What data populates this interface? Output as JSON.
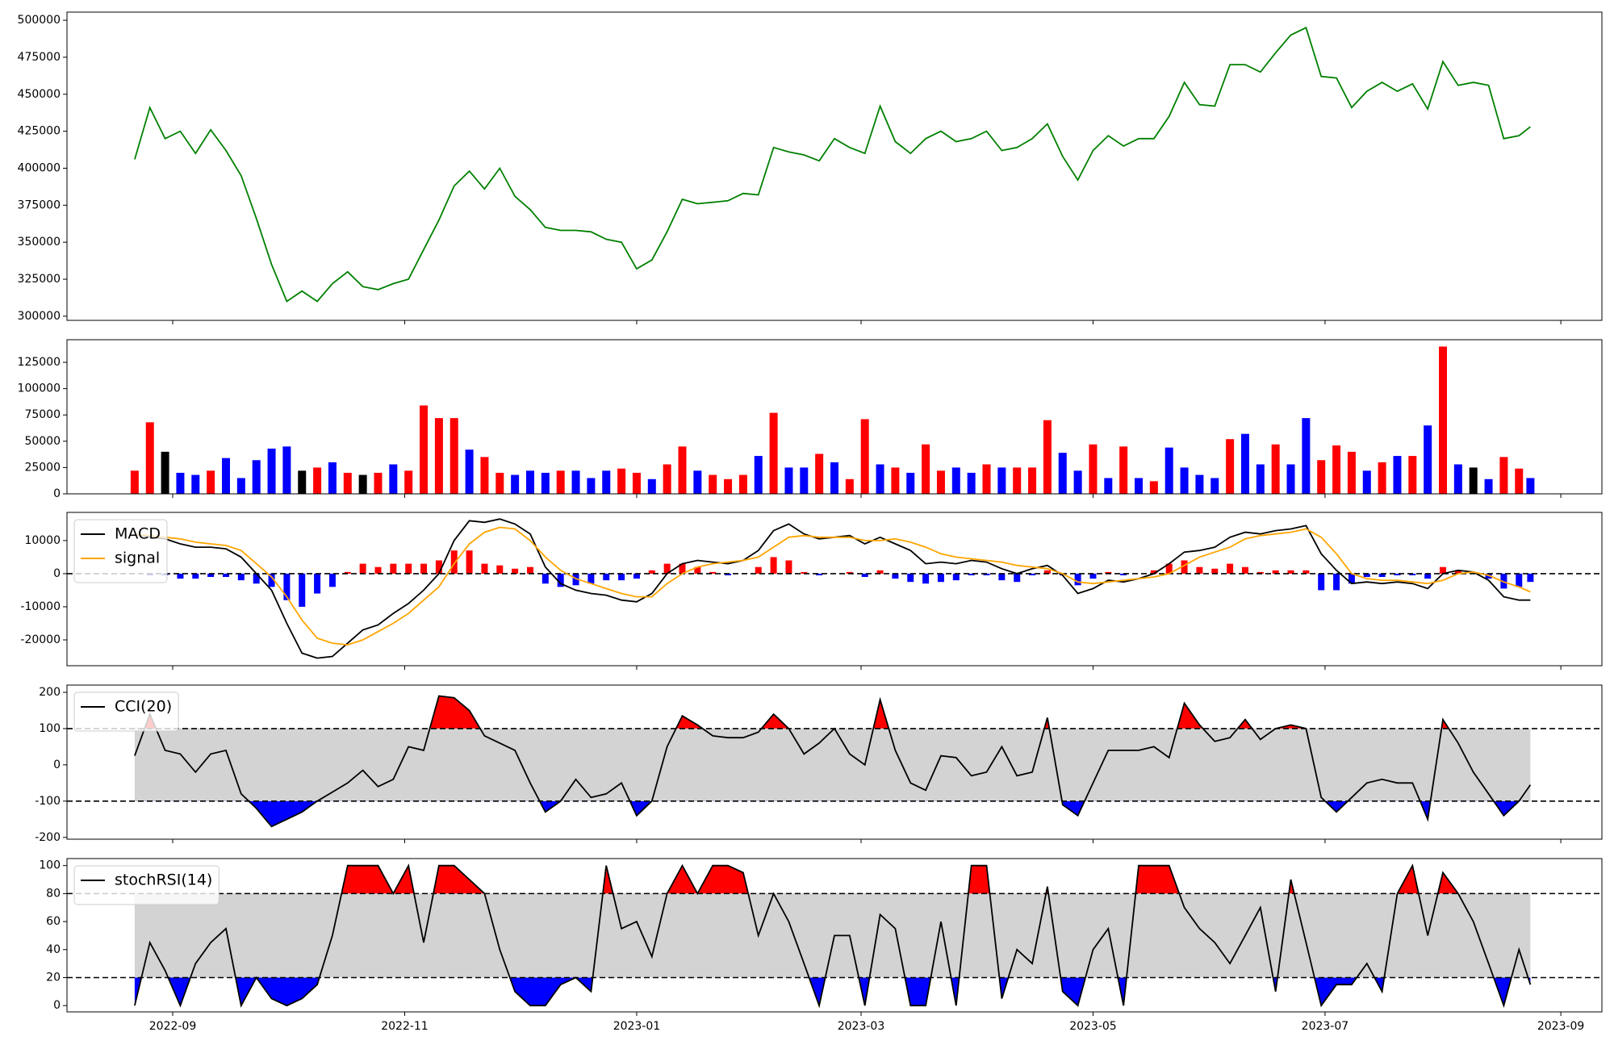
{
  "chart_data": [
    {
      "type": "line",
      "sharex": true,
      "ylim": [
        297200,
        505500
      ],
      "yticks": [
        300000,
        325000,
        350000,
        375000,
        400000,
        425000,
        450000,
        475000,
        500000
      ],
      "series": [
        {
          "color": "green",
          "values": [
            406000,
            441000,
            420000,
            425000,
            410000,
            426000,
            412000,
            395000,
            366000,
            335000,
            310000,
            317000,
            310000,
            322000,
            330000,
            320000,
            318000,
            322000,
            325000,
            345000,
            365000,
            388000,
            398000,
            386000,
            400000,
            381000,
            372000,
            360000,
            358000,
            358000,
            357000,
            352000,
            350000,
            332000,
            338000,
            357000,
            379000,
            376000,
            377000,
            378000,
            383000,
            382000,
            414000,
            411000,
            409000,
            405000,
            420000,
            414000,
            410000,
            442000,
            418000,
            410000,
            420000,
            425000,
            418000,
            420000,
            425000,
            412000,
            414000,
            420000,
            430000,
            408000,
            392000,
            412000,
            422000,
            415000,
            420000,
            420000,
            435000,
            458000,
            443000,
            442000,
            470000,
            470000,
            465000,
            478000,
            490000,
            495000,
            462000,
            461000,
            441000,
            452000,
            458000,
            452000,
            457000,
            440000,
            472000,
            456000,
            458000,
            456000,
            420000,
            422000,
            428000
          ]
        }
      ]
    },
    {
      "type": "bar",
      "sharex": true,
      "ylim": [
        0,
        146500
      ],
      "yticks": [
        0,
        25000,
        50000,
        75000,
        100000,
        125000
      ],
      "values": [
        22000,
        68000,
        40000,
        20000,
        18000,
        22000,
        34000,
        15000,
        32000,
        43000,
        45000,
        22000,
        25000,
        30000,
        20000,
        18000,
        20000,
        28000,
        22000,
        84000,
        72000,
        72000,
        42000,
        35000,
        20000,
        18000,
        22000,
        20000,
        22000,
        22000,
        15000,
        22000,
        24000,
        20000,
        14000,
        28000,
        45000,
        22000,
        18000,
        14000,
        18000,
        36000,
        77000,
        25000,
        25000,
        38000,
        30000,
        14000,
        71000,
        28000,
        25000,
        20000,
        47000,
        22000,
        25000,
        20000,
        28000,
        25000,
        25000,
        25000,
        70000,
        39000,
        22000,
        47000,
        15000,
        45000,
        15000,
        12000,
        44000,
        25000,
        18000,
        15000,
        52000,
        57000,
        28000,
        47000,
        28000,
        72000,
        32000,
        46000,
        40000,
        22000,
        30000,
        36000,
        36000,
        65000,
        140000,
        28000,
        25000,
        14000,
        35000,
        24000,
        15000
      ],
      "colors": [
        "red",
        "red",
        "black",
        "blue",
        "blue",
        "red",
        "blue",
        "blue",
        "blue",
        "blue",
        "blue",
        "black",
        "red",
        "blue",
        "red",
        "black",
        "red",
        "blue",
        "red",
        "red",
        "red",
        "red",
        "blue",
        "red",
        "red",
        "blue",
        "blue",
        "blue",
        "red",
        "blue",
        "blue",
        "blue",
        "red",
        "red",
        "blue",
        "red",
        "red",
        "blue",
        "red",
        "red",
        "red",
        "blue",
        "red",
        "blue",
        "blue",
        "red",
        "blue",
        "red",
        "red",
        "blue",
        "red",
        "blue",
        "red",
        "red",
        "blue",
        "blue",
        "red",
        "blue",
        "red",
        "red",
        "red",
        "blue",
        "blue",
        "red",
        "blue",
        "red",
        "blue",
        "red",
        "blue",
        "blue",
        "blue",
        "blue",
        "red",
        "blue",
        "blue",
        "red",
        "blue",
        "blue",
        "red",
        "red",
        "red",
        "blue",
        "red",
        "blue",
        "red",
        "blue",
        "red",
        "blue",
        "black",
        "blue",
        "red",
        "red",
        "blue"
      ]
    },
    {
      "type": "macd",
      "sharex": true,
      "ylim": [
        -27800,
        18500
      ],
      "yticks": [
        -20000,
        -10000,
        0,
        10000
      ],
      "legend": "upper left",
      "hlines": [
        0
      ],
      "series": [
        {
          "name": "MACD",
          "color": "black",
          "values": [
            12000,
            11000,
            10500,
            9000,
            8000,
            8000,
            7500,
            5000,
            0,
            -5000,
            -15000,
            -24000,
            -25500,
            -25000,
            -21000,
            -17000,
            -15500,
            -12000,
            -9000,
            -5000,
            0,
            10000,
            16000,
            15500,
            16500,
            15000,
            12000,
            2000,
            -3000,
            -5000,
            -6000,
            -6500,
            -8000,
            -8500,
            -6000,
            0,
            3000,
            4000,
            3500,
            3000,
            4000,
            7000,
            13000,
            15000,
            12000,
            10500,
            11000,
            11500,
            9000,
            11000,
            9000,
            7000,
            3000,
            3500,
            3000,
            4000,
            3500,
            1500,
            0,
            1500,
            2500,
            -500,
            -6000,
            -4500,
            -2000,
            -2500,
            -1500,
            0,
            3000,
            6500,
            7000,
            8000,
            11000,
            12500,
            12000,
            13000,
            13500,
            14500,
            6000,
            1000,
            -3000,
            -2500,
            -3000,
            -2500,
            -3000,
            -4500,
            0,
            1000,
            500,
            -2000,
            -7000,
            -8000,
            -8000
          ]
        },
        {
          "name": "signal",
          "color": "orange",
          "values": [
            12000,
            11500,
            11000,
            10500,
            9500,
            9000,
            8500,
            7000,
            3000,
            -1000,
            -7000,
            -14000,
            -19500,
            -21000,
            -21500,
            -20000,
            -17500,
            -15000,
            -12000,
            -8000,
            -4000,
            3000,
            9000,
            12500,
            14000,
            13500,
            10000,
            5000,
            1000,
            -1500,
            -3000,
            -4500,
            -6000,
            -7000,
            -7000,
            -3000,
            0,
            2000,
            3000,
            3500,
            4000,
            5000,
            8000,
            11000,
            11500,
            11000,
            11000,
            11000,
            10000,
            10000,
            10500,
            9500,
            8000,
            6000,
            5000,
            4500,
            4000,
            3500,
            2500,
            2000,
            1500,
            0,
            -2500,
            -3000,
            -2500,
            -2000,
            -1500,
            -1000,
            0,
            2500,
            5000,
            6500,
            8000,
            10500,
            11500,
            12000,
            12500,
            13500,
            11000,
            6000,
            0,
            -1500,
            -2000,
            -2000,
            -2500,
            -3000,
            -2000,
            0,
            500,
            -500,
            -2500,
            -4000,
            -5500
          ]
        }
      ],
      "histogram": {
        "up_color": "red",
        "down_color": "blue",
        "values": [
          0,
          -500,
          -500,
          -1500,
          -1500,
          -1000,
          -1000,
          -2000,
          -3000,
          -4000,
          -8000,
          -10000,
          -6000,
          -4000,
          500,
          3000,
          2000,
          3000,
          3000,
          3000,
          4000,
          7000,
          7000,
          3000,
          2500,
          1500,
          2000,
          -3000,
          -4000,
          -3500,
          -3000,
          -2000,
          -2000,
          -1500,
          1000,
          3000,
          3000,
          2000,
          500,
          -500,
          0,
          2000,
          5000,
          4000,
          500,
          -500,
          0,
          500,
          -1000,
          1000,
          -1500,
          -2500,
          -3000,
          -2500,
          -2000,
          -500,
          -500,
          -2000,
          -2500,
          -500,
          1000,
          -500,
          -3500,
          -1500,
          500,
          -500,
          0,
          1000,
          3000,
          4000,
          2000,
          1500,
          3000,
          2000,
          500,
          1000,
          1000,
          1000,
          -5000,
          -5000,
          -3000,
          -1000,
          -1000,
          -500,
          -500,
          -1500,
          2000,
          1000,
          0,
          -1500,
          -4500,
          -4000,
          -2500
        ]
      }
    },
    {
      "type": "oscillator",
      "sharex": true,
      "ylim": [
        -205,
        220
      ],
      "yticks": [
        -200,
        -100,
        0,
        100,
        200
      ],
      "legend": "upper left",
      "hlines": [
        100,
        -100
      ],
      "band_color": "lightgray",
      "upper_color": "red",
      "lower_color": "blue",
      "series": [
        {
          "name": "CCI(20)",
          "color": "black",
          "values": [
            25,
            140,
            40,
            30,
            -20,
            30,
            40,
            -80,
            -120,
            -170,
            -150,
            -130,
            -100,
            -75,
            -50,
            -15,
            -60,
            -40,
            50,
            40,
            190,
            185,
            150,
            80,
            60,
            40,
            -50,
            -130,
            -100,
            -40,
            -90,
            -80,
            -50,
            -140,
            -100,
            50,
            135,
            110,
            80,
            75,
            75,
            90,
            140,
            100,
            30,
            60,
            100,
            30,
            0,
            180,
            40,
            -50,
            -70,
            25,
            20,
            -30,
            -20,
            50,
            -30,
            -20,
            130,
            -110,
            -140,
            -50,
            40,
            40,
            40,
            50,
            20,
            170,
            110,
            65,
            75,
            125,
            70,
            100,
            110,
            100,
            -90,
            -130,
            -90,
            -50,
            -40,
            -50,
            -50,
            -150,
            125,
            60,
            -20,
            -80,
            -140,
            -100,
            -55
          ]
        }
      ]
    },
    {
      "type": "oscillator",
      "ylim": [
        -4.5,
        105
      ],
      "yticks": [
        0,
        20,
        40,
        60,
        80,
        100
      ],
      "legend": "upper left",
      "hlines": [
        80,
        20
      ],
      "band_color": "lightgray",
      "upper_color": "red",
      "lower_color": "blue",
      "series": [
        {
          "name": "stochRSI(14)",
          "color": "black",
          "values": [
            0,
            45,
            25,
            0,
            30,
            45,
            55,
            0,
            20,
            5,
            0,
            5,
            15,
            50,
            100,
            100,
            100,
            80,
            100,
            45,
            100,
            100,
            90,
            80,
            40,
            10,
            0,
            0,
            15,
            20,
            10,
            100,
            55,
            60,
            35,
            80,
            100,
            80,
            100,
            100,
            95,
            50,
            80,
            60,
            30,
            0,
            50,
            50,
            0,
            65,
            55,
            0,
            0,
            60,
            0,
            100,
            100,
            5,
            40,
            30,
            85,
            10,
            0,
            40,
            55,
            0,
            100,
            100,
            100,
            70,
            55,
            45,
            30,
            50,
            70,
            10,
            90,
            45,
            0,
            15,
            15,
            30,
            10,
            80,
            100,
            50,
            95,
            80,
            60,
            30,
            0,
            40,
            15
          ]
        }
      ],
      "x": [
        21,
        25,
        29,
        33,
        37,
        41,
        45,
        49,
        53,
        57,
        61,
        65,
        69,
        73,
        77,
        81,
        85,
        89,
        93,
        97,
        101,
        105,
        109,
        113,
        117,
        121,
        125,
        129,
        133,
        137,
        141,
        145,
        149,
        153,
        157,
        161,
        165,
        169,
        173,
        177,
        181,
        185,
        189,
        193,
        197,
        201,
        205,
        209,
        213,
        217,
        221,
        225,
        229,
        233,
        237,
        241,
        245,
        249,
        253,
        257,
        261,
        265,
        269,
        273,
        277,
        281,
        285,
        289,
        293,
        297,
        301,
        305,
        309,
        313,
        317,
        321,
        325,
        329,
        333,
        337,
        341,
        345,
        349,
        353,
        357,
        361,
        365,
        369,
        373,
        377,
        381,
        385,
        388
      ],
      "xlim": [
        3.2,
        406.8
      ],
      "xticks": [
        {
          "value": 31,
          "label": "2022-09"
        },
        {
          "value": 92,
          "label": "2022-11"
        },
        {
          "value": 153,
          "label": "2023-01"
        },
        {
          "value": 212,
          "label": "2023-03"
        },
        {
          "value": 273,
          "label": "2023-05"
        },
        {
          "value": 334,
          "label": "2023-07"
        },
        {
          "value": 396,
          "label": "2023-09"
        }
      ]
    }
  ]
}
